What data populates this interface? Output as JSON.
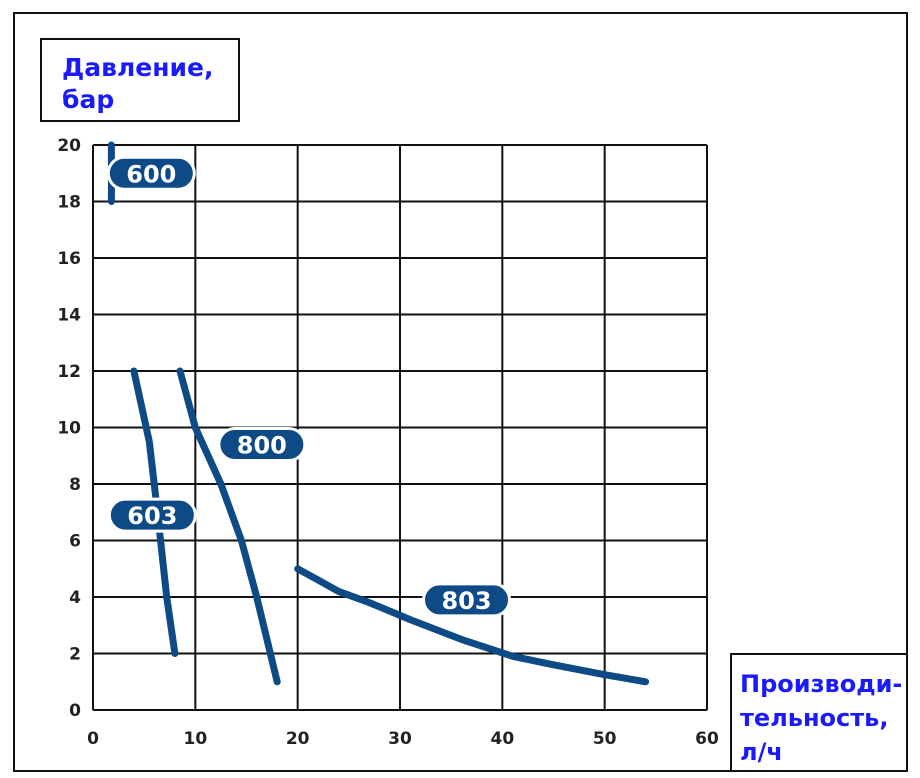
{
  "chart_data": {
    "type": "line",
    "ylabel": "Давление,\nбар",
    "xlabel": "Производи-\nтельность,\nл/ч",
    "xlim": [
      0,
      60
    ],
    "ylim": [
      0,
      20
    ],
    "x_ticks": [
      0,
      10,
      20,
      30,
      40,
      50,
      60
    ],
    "y_ticks": [
      0,
      2,
      4,
      6,
      8,
      10,
      12,
      14,
      16,
      18,
      20
    ],
    "grid": true,
    "color": "#0d4a86",
    "series": [
      {
        "name": "600",
        "points": [
          [
            1.8,
            18
          ],
          [
            1.8,
            20
          ]
        ],
        "label_at": [
          5.7,
          19.0
        ]
      },
      {
        "name": "603",
        "points": [
          [
            4,
            12
          ],
          [
            5.5,
            9.5
          ],
          [
            6.3,
            7
          ],
          [
            7.2,
            4
          ],
          [
            8,
            2
          ]
        ],
        "label_at": [
          5.8,
          6.9
        ]
      },
      {
        "name": "800",
        "points": [
          [
            8.5,
            12
          ],
          [
            10,
            10
          ],
          [
            12.5,
            8
          ],
          [
            14.5,
            6
          ],
          [
            16,
            4
          ],
          [
            18,
            1
          ]
        ],
        "label_at": [
          16.5,
          9.4
        ]
      },
      {
        "name": "803",
        "points": [
          [
            20,
            5
          ],
          [
            21.5,
            4.7
          ],
          [
            24,
            4.2
          ],
          [
            27,
            3.8
          ],
          [
            31,
            3.2
          ],
          [
            36,
            2.5
          ],
          [
            41,
            1.9
          ],
          [
            45,
            1.6
          ],
          [
            50,
            1.25
          ],
          [
            54,
            1
          ]
        ],
        "label_at": [
          36.5,
          3.9
        ]
      }
    ]
  }
}
